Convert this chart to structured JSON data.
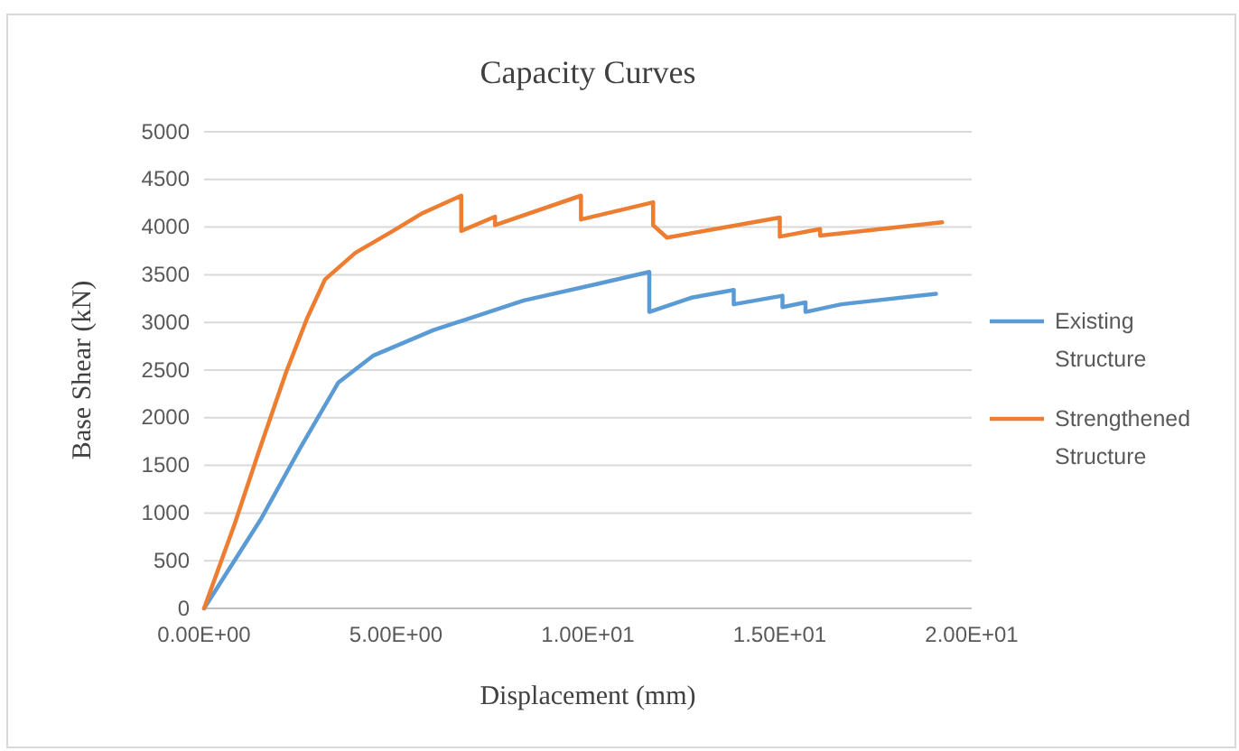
{
  "chart_data": {
    "type": "line",
    "title": "Capacity Curves",
    "xlabel": "Displacement (mm)",
    "ylabel": "Base Shear (kN)",
    "xlim": [
      0,
      20
    ],
    "xticks": [
      {
        "value": 0,
        "label": "0.00E+00"
      },
      {
        "value": 5,
        "label": "5.00E+00"
      },
      {
        "value": 10,
        "label": "1.00E+01"
      },
      {
        "value": 15,
        "label": "1.50E+01"
      },
      {
        "value": 20,
        "label": "2.00E+01"
      }
    ],
    "ylim": [
      0,
      5000
    ],
    "yticks": [
      0,
      500,
      1000,
      1500,
      2000,
      2500,
      3000,
      3500,
      4000,
      4500,
      5000
    ],
    "grid": "y",
    "legend": "right",
    "marker": "none",
    "series": [
      {
        "name": "Existing Structure",
        "color": "#5b9bd5",
        "x": [
          0,
          1.5,
          2.5,
          3.5,
          4.4,
          5.98,
          8.33,
          10.2,
          11.6,
          11.6,
          12.7,
          13.8,
          13.8,
          15.07,
          15.07,
          15.67,
          15.67,
          16.6,
          19.07
        ],
        "values": [
          0,
          950,
          1680,
          2370,
          2650,
          2920,
          3230,
          3400,
          3530,
          3110,
          3260,
          3340,
          3190,
          3280,
          3160,
          3210,
          3110,
          3190,
          3300
        ]
      },
      {
        "name": "Strengthened Structure",
        "color": "#ed7d31",
        "x": [
          0,
          0.8,
          1.43,
          2.13,
          2.68,
          3.15,
          3.94,
          4.88,
          5.66,
          6.7,
          6.7,
          7.58,
          7.58,
          9.82,
          9.82,
          11.7,
          11.7,
          12.06,
          15.0,
          15.0,
          16.05,
          16.05,
          19.23
        ],
        "values": [
          0,
          890,
          1650,
          2470,
          3040,
          3450,
          3730,
          3950,
          4140,
          4330,
          3960,
          4110,
          4020,
          4330,
          4080,
          4260,
          4020,
          3890,
          4100,
          3900,
          3980,
          3910,
          4050
        ]
      }
    ]
  }
}
